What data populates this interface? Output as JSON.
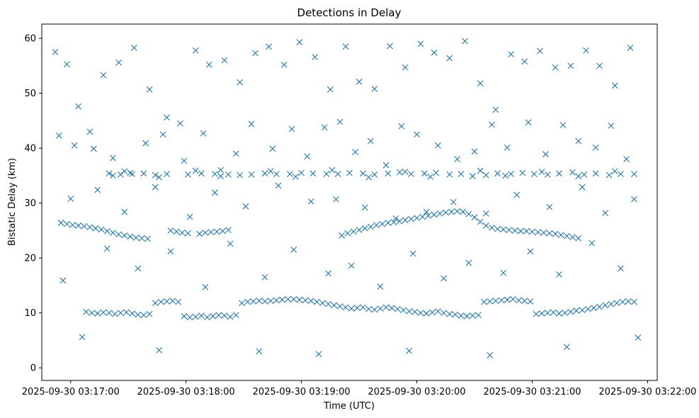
{
  "chart_data": {
    "type": "scatter",
    "title": "Detections in Delay",
    "xlabel": "Time (UTC)",
    "ylabel": "Bistatic Delay (km)",
    "x_ticks": [
      "2025-09-30 03:17:00",
      "2025-09-30 03:18:00",
      "2025-09-30 03:19:00",
      "2025-09-30 03:20:00",
      "2025-09-30 03:21:00",
      "2025-09-30 03:22:00"
    ],
    "y_ticks": [
      "0",
      "10",
      "20",
      "30",
      "40",
      "50",
      "60"
    ],
    "xlim": [
      "2025-09-30 03:16:45",
      "2025-09-30 03:22:05"
    ],
    "ylim": [
      -2.3,
      62.6
    ],
    "grid": false,
    "legend": "none",
    "marker": "x",
    "color": "#1f77b4",
    "series": [
      {
        "x": [
          "2025-09-30 03:16:52",
          "2025-09-30 03:16:58",
          "2025-09-30 03:17:04",
          "2025-09-30 03:17:10",
          "2025-09-30 03:17:17",
          "2025-09-30 03:17:25",
          "2025-09-30 03:17:33",
          "2025-09-30 03:17:41",
          "2025-09-30 03:17:50",
          "2025-09-30 03:17:57",
          "2025-09-30 03:18:05",
          "2025-09-30 03:18:12",
          "2025-09-30 03:18:20",
          "2025-09-30 03:18:28",
          "2025-09-30 03:18:36",
          "2025-09-30 03:18:43",
          "2025-09-30 03:18:51",
          "2025-09-30 03:18:59",
          "2025-09-30 03:19:07",
          "2025-09-30 03:19:15",
          "2025-09-30 03:19:23",
          "2025-09-30 03:19:30",
          "2025-09-30 03:19:38",
          "2025-09-30 03:19:46",
          "2025-09-30 03:19:54",
          "2025-09-30 03:20:02",
          "2025-09-30 03:20:09",
          "2025-09-30 03:20:17",
          "2025-09-30 03:20:25",
          "2025-09-30 03:20:33",
          "2025-09-30 03:20:41",
          "2025-09-30 03:20:49",
          "2025-09-30 03:20:56",
          "2025-09-30 03:21:04",
          "2025-09-30 03:21:12",
          "2025-09-30 03:21:20",
          "2025-09-30 03:21:28",
          "2025-09-30 03:21:35",
          "2025-09-30 03:21:43",
          "2025-09-30 03:21:51",
          "2025-09-30 03:16:54",
          "2025-09-30 03:17:02",
          "2025-09-30 03:17:12",
          "2025-09-30 03:17:22",
          "2025-09-30 03:17:31",
          "2025-09-30 03:17:39",
          "2025-09-30 03:17:48",
          "2025-09-30 03:17:59",
          "2025-09-30 03:18:09",
          "2025-09-30 03:18:18",
          "2025-09-30 03:18:26",
          "2025-09-30 03:18:34",
          "2025-09-30 03:18:45",
          "2025-09-30 03:18:55",
          "2025-09-30 03:19:03",
          "2025-09-30 03:19:12",
          "2025-09-30 03:19:20",
          "2025-09-30 03:19:28",
          "2025-09-30 03:19:36",
          "2025-09-30 03:19:44",
          "2025-09-30 03:19:52",
          "2025-09-30 03:20:00",
          "2025-09-30 03:20:11",
          "2025-09-30 03:20:21",
          "2025-09-30 03:20:30",
          "2025-09-30 03:20:39",
          "2025-09-30 03:20:47",
          "2025-09-30 03:20:58",
          "2025-09-30 03:21:07",
          "2025-09-30 03:21:16",
          "2025-09-30 03:21:24",
          "2025-09-30 03:21:33",
          "2025-09-30 03:21:41",
          "2025-09-30 03:21:49",
          "2025-09-30 03:17:00",
          "2025-09-30 03:17:14",
          "2025-09-30 03:17:28",
          "2025-09-30 03:17:44",
          "2025-09-30 03:18:02",
          "2025-09-30 03:18:15",
          "2025-09-30 03:18:31",
          "2025-09-30 03:18:48",
          "2025-09-30 03:19:05",
          "2025-09-30 03:19:18",
          "2025-09-30 03:19:33",
          "2025-09-30 03:19:49",
          "2025-09-30 03:20:05",
          "2025-09-30 03:20:19",
          "2025-09-30 03:20:36",
          "2025-09-30 03:20:52",
          "2025-09-30 03:21:09",
          "2025-09-30 03:21:26",
          "2025-09-30 03:21:38",
          "2025-09-30 03:21:53",
          "2025-09-30 03:17:19",
          "2025-09-30 03:17:52",
          "2025-09-30 03:18:23",
          "2025-09-30 03:18:56",
          "2025-09-30 03:19:26",
          "2025-09-30 03:19:58",
          "2025-09-30 03:20:27",
          "2025-09-30 03:20:59",
          "2025-09-30 03:21:31",
          "2025-09-30 03:16:56",
          "2025-09-30 03:17:35",
          "2025-09-30 03:18:10",
          "2025-09-30 03:18:41",
          "2025-09-30 03:19:14",
          "2025-09-30 03:19:41",
          "2025-09-30 03:20:14",
          "2025-09-30 03:20:45",
          "2025-09-30 03:21:14",
          "2025-09-30 03:21:46",
          "2025-09-30 03:17:06",
          "2025-09-30 03:17:46",
          "2025-09-30 03:18:38",
          "2025-09-30 03:19:09",
          "2025-09-30 03:19:56",
          "2025-09-30 03:20:38",
          "2025-09-30 03:21:18",
          "2025-09-30 03:21:55"
        ],
        "y": [
          57.5,
          55.3,
          47.6,
          43.0,
          53.3,
          55.6,
          58.3,
          50.7,
          45.6,
          44.5,
          57.8,
          55.2,
          56.0,
          52.0,
          57.3,
          58.5,
          55.2,
          59.3,
          56.6,
          50.7,
          58.5,
          52.1,
          50.8,
          58.6,
          54.7,
          59.0,
          57.4,
          56.4,
          59.5,
          51.8,
          47.0,
          57.1,
          55.8,
          57.7,
          54.7,
          55.0,
          57.8,
          55.0,
          51.4,
          58.3,
          42.3,
          40.5,
          39.9,
          38.2,
          35.5,
          40.9,
          42.5,
          37.7,
          42.7,
          36.0,
          39.0,
          44.4,
          39.9,
          43.5,
          38.5,
          43.8,
          44.8,
          39.3,
          41.3,
          36.9,
          44.0,
          42.5,
          40.5,
          38.0,
          39.4,
          44.3,
          40.1,
          44.7,
          38.9,
          44.2,
          41.3,
          40.1,
          44.1,
          38.0,
          30.8,
          32.4,
          28.4,
          32.9,
          27.5,
          31.9,
          29.4,
          33.2,
          30.3,
          30.7,
          29.2,
          27.2,
          28.4,
          30.2,
          28.1,
          31.5,
          29.3,
          32.9,
          28.2,
          30.7,
          21.7,
          21.2,
          22.6,
          21.5,
          18.6,
          20.8,
          19.1,
          21.2,
          22.7,
          15.9,
          18.1,
          14.7,
          16.5,
          17.2,
          14.8,
          16.3,
          17.3,
          17.0,
          18.1,
          5.6,
          3.2,
          3.0,
          2.5,
          3.1,
          2.3,
          3.8,
          5.5
        ]
      },
      {
        "name": "",
        "x": [
          "2025-09-30 03:17:20",
          "2025-09-30 03:17:26",
          "2025-09-30 03:17:32",
          "2025-09-30 03:17:38",
          "2025-09-30 03:17:44",
          "2025-09-30 03:17:50",
          "2025-09-30 03:18:01",
          "2025-09-30 03:18:08",
          "2025-09-30 03:18:15",
          "2025-09-30 03:18:22",
          "2025-09-30 03:18:28",
          "2025-09-30 03:18:34",
          "2025-09-30 03:18:41",
          "2025-09-30 03:18:47",
          "2025-09-30 03:18:54",
          "2025-09-30 03:19:00",
          "2025-09-30 03:19:06",
          "2025-09-30 03:19:13",
          "2025-09-30 03:19:19",
          "2025-09-30 03:19:25",
          "2025-09-30 03:19:32",
          "2025-09-30 03:19:38",
          "2025-09-30 03:19:45",
          "2025-09-30 03:19:51",
          "2025-09-30 03:19:57",
          "2025-09-30 03:20:04",
          "2025-09-30 03:20:10",
          "2025-09-30 03:20:17",
          "2025-09-30 03:20:23",
          "2025-09-30 03:20:29",
          "2025-09-30 03:20:36",
          "2025-09-30 03:20:42",
          "2025-09-30 03:20:49",
          "2025-09-30 03:20:55",
          "2025-09-30 03:21:01",
          "2025-09-30 03:21:08",
          "2025-09-30 03:21:14",
          "2025-09-30 03:21:21",
          "2025-09-30 03:21:27",
          "2025-09-30 03:21:33",
          "2025-09-30 03:21:40",
          "2025-09-30 03:21:46",
          "2025-09-30 03:21:53",
          "2025-09-30 03:17:22",
          "2025-09-30 03:17:28",
          "2025-09-30 03:17:46",
          "2025-09-30 03:18:05",
          "2025-09-30 03:18:18",
          "2025-09-30 03:18:44",
          "2025-09-30 03:18:57",
          "2025-09-30 03:19:16",
          "2025-09-30 03:19:35",
          "2025-09-30 03:19:54",
          "2025-09-30 03:20:07",
          "2025-09-30 03:20:33",
          "2025-09-30 03:20:46",
          "2025-09-30 03:21:05",
          "2025-09-30 03:21:24",
          "2025-09-30 03:21:43"
        ],
        "y": [
          35.4,
          35.2,
          35.3,
          35.4,
          35.1,
          35.3,
          35.2,
          35.4,
          35.3,
          35.2,
          35.1,
          35.2,
          35.4,
          35.3,
          35.3,
          35.5,
          35.4,
          35.3,
          35.3,
          35.5,
          35.4,
          35.2,
          35.4,
          35.6,
          35.3,
          35.4,
          35.5,
          35.2,
          35.3,
          34.9,
          35.1,
          35.4,
          35.3,
          35.5,
          35.3,
          35.2,
          35.4,
          35.6,
          35.2,
          35.4,
          35.1,
          35.3,
          35.3,
          35.0,
          35.8,
          34.7,
          35.9,
          34.9,
          35.8,
          34.8,
          36.0,
          34.7,
          35.7,
          34.8,
          35.9,
          35.0,
          35.7,
          34.9,
          35.8
        ]
      },
      {
        "x": [
          "2025-09-30 03:16:55",
          "2025-09-30 03:16:58",
          "2025-09-30 03:17:01",
          "2025-09-30 03:17:04",
          "2025-09-30 03:17:07",
          "2025-09-30 03:17:10",
          "2025-09-30 03:17:13",
          "2025-09-30 03:17:16",
          "2025-09-30 03:17:19",
          "2025-09-30 03:17:22",
          "2025-09-30 03:17:25",
          "2025-09-30 03:17:28",
          "2025-09-30 03:17:31",
          "2025-09-30 03:17:34",
          "2025-09-30 03:17:37",
          "2025-09-30 03:17:40",
          "2025-09-30 03:17:52",
          "2025-09-30 03:17:55",
          "2025-09-30 03:17:58",
          "2025-09-30 03:18:01",
          "2025-09-30 03:18:07",
          "2025-09-30 03:18:10",
          "2025-09-30 03:18:13",
          "2025-09-30 03:18:16",
          "2025-09-30 03:18:19",
          "2025-09-30 03:18:22",
          "2025-09-30 03:19:21",
          "2025-09-30 03:19:24",
          "2025-09-30 03:19:27",
          "2025-09-30 03:19:30",
          "2025-09-30 03:19:33",
          "2025-09-30 03:19:36",
          "2025-09-30 03:19:39",
          "2025-09-30 03:19:42",
          "2025-09-30 03:19:45",
          "2025-09-30 03:19:48",
          "2025-09-30 03:19:51",
          "2025-09-30 03:19:54",
          "2025-09-30 03:19:57",
          "2025-09-30 03:20:00",
          "2025-09-30 03:20:03",
          "2025-09-30 03:20:06",
          "2025-09-30 03:20:09",
          "2025-09-30 03:20:12",
          "2025-09-30 03:20:15",
          "2025-09-30 03:20:18",
          "2025-09-30 03:20:21",
          "2025-09-30 03:20:24",
          "2025-09-30 03:20:27",
          "2025-09-30 03:20:30",
          "2025-09-30 03:20:33",
          "2025-09-30 03:20:36",
          "2025-09-30 03:20:39",
          "2025-09-30 03:20:42",
          "2025-09-30 03:20:45",
          "2025-09-30 03:20:48",
          "2025-09-30 03:20:51",
          "2025-09-30 03:20:54",
          "2025-09-30 03:20:57",
          "2025-09-30 03:21:00",
          "2025-09-30 03:21:03",
          "2025-09-30 03:21:06",
          "2025-09-30 03:21:09",
          "2025-09-30 03:21:12",
          "2025-09-30 03:21:15",
          "2025-09-30 03:21:18",
          "2025-09-30 03:21:21",
          "2025-09-30 03:21:24"
        ],
        "y": [
          26.4,
          26.2,
          26.0,
          25.9,
          25.8,
          25.6,
          25.4,
          25.2,
          24.9,
          24.6,
          24.3,
          24.1,
          23.9,
          23.7,
          23.6,
          23.5,
          25.0,
          24.8,
          24.6,
          24.5,
          24.4,
          24.6,
          24.7,
          24.8,
          24.9,
          25.1,
          24.1,
          24.5,
          24.8,
          25.1,
          25.4,
          25.7,
          26.0,
          26.2,
          26.4,
          26.5,
          26.7,
          26.9,
          27.1,
          27.3,
          27.5,
          27.7,
          27.9,
          28.1,
          28.3,
          28.4,
          28.5,
          28.4,
          28.0,
          27.4,
          26.6,
          25.9,
          25.5,
          25.3,
          25.2,
          25.1,
          25.0,
          24.9,
          24.9,
          24.8,
          24.7,
          24.6,
          24.5,
          24.4,
          24.2,
          24.0,
          23.8,
          23.6
        ]
      },
      {
        "x": [
          "2025-09-30 03:17:08",
          "2025-09-30 03:17:11",
          "2025-09-30 03:17:14",
          "2025-09-30 03:17:17",
          "2025-09-30 03:17:20",
          "2025-09-30 03:17:23",
          "2025-09-30 03:17:26",
          "2025-09-30 03:17:29",
          "2025-09-30 03:17:32",
          "2025-09-30 03:17:35",
          "2025-09-30 03:17:38",
          "2025-09-30 03:17:41",
          "2025-09-30 03:17:44",
          "2025-09-30 03:17:47",
          "2025-09-30 03:17:50",
          "2025-09-30 03:17:53",
          "2025-09-30 03:17:56",
          "2025-09-30 03:17:59",
          "2025-09-30 03:18:02",
          "2025-09-30 03:18:05",
          "2025-09-30 03:18:08",
          "2025-09-30 03:18:11",
          "2025-09-30 03:18:14",
          "2025-09-30 03:18:17",
          "2025-09-30 03:18:20",
          "2025-09-30 03:18:23",
          "2025-09-30 03:18:26",
          "2025-09-30 03:18:29",
          "2025-09-30 03:18:32",
          "2025-09-30 03:18:35",
          "2025-09-30 03:18:38",
          "2025-09-30 03:18:41",
          "2025-09-30 03:18:44",
          "2025-09-30 03:18:47",
          "2025-09-30 03:18:50",
          "2025-09-30 03:18:53",
          "2025-09-30 03:18:56",
          "2025-09-30 03:18:59",
          "2025-09-30 03:19:02",
          "2025-09-30 03:19:05",
          "2025-09-30 03:19:08",
          "2025-09-30 03:19:11",
          "2025-09-30 03:19:14",
          "2025-09-30 03:19:17",
          "2025-09-30 03:19:20",
          "2025-09-30 03:19:23",
          "2025-09-30 03:19:26",
          "2025-09-30 03:19:29",
          "2025-09-30 03:19:32",
          "2025-09-30 03:19:35",
          "2025-09-30 03:19:38",
          "2025-09-30 03:19:41",
          "2025-09-30 03:19:44",
          "2025-09-30 03:19:47",
          "2025-09-30 03:19:50",
          "2025-09-30 03:19:53",
          "2025-09-30 03:19:56",
          "2025-09-30 03:19:59",
          "2025-09-30 03:20:02",
          "2025-09-30 03:20:05",
          "2025-09-30 03:20:08",
          "2025-09-30 03:20:11",
          "2025-09-30 03:20:14",
          "2025-09-30 03:20:17",
          "2025-09-30 03:20:20",
          "2025-09-30 03:20:23",
          "2025-09-30 03:20:26",
          "2025-09-30 03:20:29",
          "2025-09-30 03:20:32",
          "2025-09-30 03:20:35",
          "2025-09-30 03:20:38",
          "2025-09-30 03:20:41",
          "2025-09-30 03:20:44",
          "2025-09-30 03:20:47",
          "2025-09-30 03:20:50",
          "2025-09-30 03:20:53",
          "2025-09-30 03:20:56",
          "2025-09-30 03:20:59",
          "2025-09-30 03:21:02",
          "2025-09-30 03:21:05",
          "2025-09-30 03:21:08",
          "2025-09-30 03:21:11",
          "2025-09-30 03:21:14",
          "2025-09-30 03:21:17",
          "2025-09-30 03:21:20",
          "2025-09-30 03:21:23",
          "2025-09-30 03:21:26",
          "2025-09-30 03:21:29",
          "2025-09-30 03:21:32",
          "2025-09-30 03:21:35",
          "2025-09-30 03:21:38",
          "2025-09-30 03:21:41",
          "2025-09-30 03:21:44",
          "2025-09-30 03:21:47",
          "2025-09-30 03:21:50",
          "2025-09-30 03:21:53"
        ],
        "y": [
          10.2,
          10.0,
          9.9,
          10.1,
          10.0,
          9.8,
          10.0,
          10.1,
          9.9,
          9.7,
          9.6,
          9.8,
          11.8,
          12.0,
          12.1,
          12.2,
          12.0,
          9.4,
          9.2,
          9.3,
          9.5,
          9.2,
          9.4,
          9.6,
          9.5,
          9.3,
          9.6,
          11.8,
          12.0,
          12.1,
          12.2,
          12.1,
          12.2,
          12.3,
          12.4,
          12.5,
          12.5,
          12.4,
          12.3,
          12.2,
          12.0,
          11.8,
          11.6,
          11.4,
          11.2,
          11.0,
          10.8,
          10.9,
          11.0,
          10.7,
          10.6,
          10.8,
          11.0,
          10.9,
          10.7,
          10.5,
          10.3,
          10.2,
          10.0,
          9.9,
          10.1,
          10.3,
          10.0,
          9.8,
          9.7,
          9.5,
          9.4,
          9.5,
          9.6,
          12.0,
          12.1,
          12.2,
          12.3,
          12.4,
          12.5,
          12.3,
          12.2,
          12.1,
          9.8,
          9.9,
          10.0,
          10.1,
          9.9,
          10.0,
          10.2,
          10.4,
          10.5,
          10.7,
          10.9,
          11.1,
          11.4,
          11.6,
          11.8,
          12.0,
          12.1,
          12.0
        ]
      }
    ]
  }
}
